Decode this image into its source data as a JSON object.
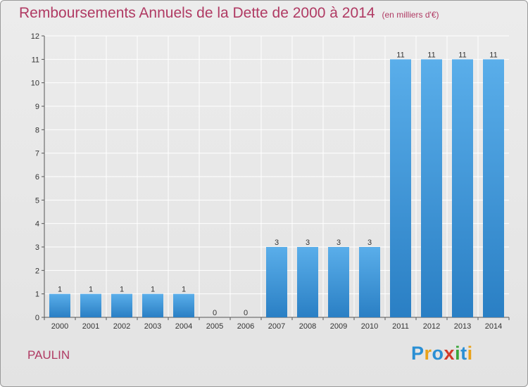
{
  "header": {
    "title": "Remboursements Annuels de la Dette de 2000 à 2014",
    "subtitle": "(en milliers d'€)"
  },
  "footer": {
    "place": "PAULIN",
    "logo_letters": [
      "P",
      "r",
      "o",
      "x",
      "i",
      "t",
      "i"
    ],
    "logo_colors": [
      "#2a8fd4",
      "#e9a21a",
      "#2a8fd4",
      "#d23a2a",
      "#3aa63a",
      "#2a8fd4",
      "#e9a21a"
    ]
  },
  "colors": {
    "bar_light": "#5aaeea",
    "bar_dark": "#2a7fc4",
    "grid": "#ffffff"
  },
  "chart_data": {
    "type": "bar",
    "title": "Remboursements Annuels de la Dette de 2000 à 2014",
    "subtitle": "(en milliers d'€)",
    "categories": [
      "2000",
      "2001",
      "2002",
      "2003",
      "2004",
      "2005",
      "2006",
      "2007",
      "2008",
      "2009",
      "2010",
      "2011",
      "2012",
      "2013",
      "2014"
    ],
    "values": [
      1,
      1,
      1,
      1,
      1,
      0,
      0,
      3,
      3,
      3,
      3,
      11,
      11,
      11,
      11
    ],
    "ylim": [
      0,
      12
    ],
    "yticks": [
      0,
      1,
      2,
      3,
      4,
      5,
      6,
      7,
      8,
      9,
      10,
      11,
      12
    ],
    "xlabel": "",
    "ylabel": "",
    "grid": true
  }
}
